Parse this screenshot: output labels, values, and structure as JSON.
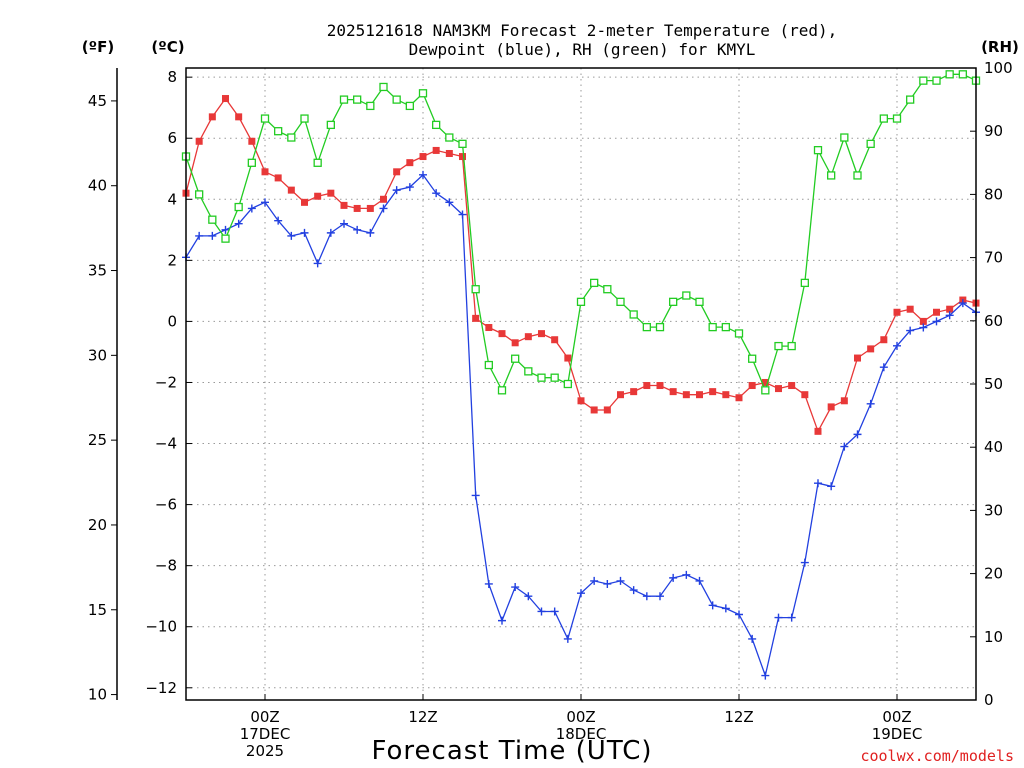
{
  "chart_data": {
    "type": "line",
    "title_line1": "2025121618 NAM3KM Forecast 2-meter Temperature (red),",
    "title_line2": "Dewpoint (blue), RH (green) for KMYL",
    "xlabel": "Forecast Time (UTC)",
    "credit": "coolwx.com/models",
    "unit_f": "(ºF)",
    "unit_c": "(ºC)",
    "unit_rh": "(RH)",
    "x_start_hour": 18,
    "x_end_hour": 78,
    "ylim_c": [
      -12.4,
      8.3
    ],
    "ylim_rh": [
      0,
      100
    ],
    "y_ticks_c": [
      "8",
      "6",
      "4",
      "2",
      "0",
      "−2",
      "−4",
      "−6",
      "−8",
      "−10",
      "−12"
    ],
    "y_ticks_f": [
      "45",
      "40",
      "35",
      "30",
      "25",
      "20",
      "15",
      "10"
    ],
    "y_ticks_rh": [
      "100",
      "90",
      "80",
      "70",
      "60",
      "50",
      "40",
      "30",
      "20",
      "10",
      "0"
    ],
    "x_ticks": [
      {
        "hour": 24,
        "line1": "00Z",
        "line2": "17DEC",
        "line3": "2025"
      },
      {
        "hour": 36,
        "line1": "12Z",
        "line2": "",
        "line3": ""
      },
      {
        "hour": 48,
        "line1": "00Z",
        "line2": "18DEC",
        "line3": ""
      },
      {
        "hour": 60,
        "line1": "12Z",
        "line2": "",
        "line3": ""
      },
      {
        "hour": 72,
        "line1": "00Z",
        "line2": "19DEC",
        "line3": ""
      }
    ],
    "series": [
      {
        "name": "Temperature",
        "unit": "C",
        "color": "#e83838",
        "marker": "filled-square",
        "values": [
          4.2,
          5.9,
          6.7,
          7.3,
          6.7,
          5.9,
          4.9,
          4.7,
          4.3,
          3.9,
          4.1,
          4.2,
          3.8,
          3.7,
          3.7,
          4.0,
          4.9,
          5.2,
          5.4,
          5.6,
          5.5,
          5.4,
          0.1,
          -0.2,
          -0.4,
          -0.7,
          -0.5,
          -0.4,
          -0.6,
          -1.2,
          -2.6,
          -2.9,
          -2.9,
          -2.4,
          -2.3,
          -2.1,
          -2.1,
          -2.3,
          -2.4,
          -2.4,
          -2.3,
          -2.4,
          -2.5,
          -2.1,
          -2.0,
          -2.2,
          -2.1,
          -2.4,
          -3.6,
          -2.8,
          -2.6,
          -1.2,
          -0.9,
          -0.6,
          0.3,
          0.4,
          0.0,
          0.3,
          0.4,
          0.7,
          0.6
        ]
      },
      {
        "name": "Dewpoint",
        "unit": "C",
        "color": "#2240e0",
        "marker": "plus",
        "values": [
          2.1,
          2.8,
          2.8,
          3.0,
          3.2,
          3.7,
          3.9,
          3.3,
          2.8,
          2.9,
          1.9,
          2.9,
          3.2,
          3.0,
          2.9,
          3.7,
          4.3,
          4.4,
          4.8,
          4.2,
          3.9,
          3.5,
          -5.7,
          -8.6,
          -9.8,
          -8.7,
          -9.0,
          -9.5,
          -9.5,
          -10.4,
          -8.9,
          -8.5,
          -8.6,
          -8.5,
          -8.8,
          -9.0,
          -9.0,
          -8.4,
          -8.3,
          -8.5,
          -9.3,
          -9.4,
          -9.6,
          -10.4,
          -11.6,
          -9.7,
          -9.7,
          -7.9,
          -5.3,
          -5.4,
          -4.1,
          -3.7,
          -2.7,
          -1.5,
          -0.8,
          -0.3,
          -0.2,
          0.0,
          0.2,
          0.6,
          0.3
        ]
      },
      {
        "name": "Relative Humidity",
        "unit": "%",
        "color": "#22cc22",
        "marker": "open-square",
        "values": [
          86,
          80,
          76,
          73,
          78,
          85,
          92,
          90,
          89,
          92,
          85,
          91,
          95,
          95,
          94,
          97,
          95,
          94,
          96,
          91,
          89,
          88,
          65,
          53,
          49,
          54,
          52,
          51,
          51,
          50,
          63,
          66,
          65,
          63,
          61,
          59,
          59,
          63,
          64,
          63,
          59,
          59,
          58,
          54,
          49,
          56,
          56,
          66,
          87,
          83,
          89,
          83,
          88,
          92,
          92,
          95,
          98,
          98,
          99,
          99,
          98
        ]
      }
    ]
  }
}
